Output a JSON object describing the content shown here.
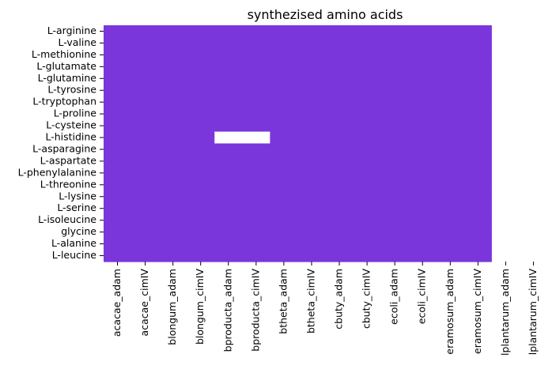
{
  "chart_data": {
    "type": "heatmap",
    "title": "synthezised amino acids",
    "xlabel": "",
    "ylabel": "",
    "grid": false,
    "legend": "none",
    "filled_color": "#7a36db",
    "empty_color": "#ffffff",
    "columns": [
      "acacae_adam",
      "acacae_cimIV",
      "blongum_adam",
      "blongum_cimIV",
      "bproducta_adam",
      "bproducta_cimIV",
      "btheta_adam",
      "btheta_cimIV",
      "cbuty_adam",
      "cbuty_cimIV",
      "ecoli_adam",
      "ecoli_cimIV",
      "eramosum_adam",
      "eramosum_cimIV",
      "lplantarum_adam",
      "lplantarum_cimIV"
    ],
    "rows": [
      "L-arginine",
      "L-valine",
      "L-methionine",
      "L-glutamate",
      "L-glutamine",
      "L-tyrosine",
      "L-tryptophan",
      "L-proline",
      "L-cysteine",
      "L-histidine",
      "L-asparagine",
      "L-aspartate",
      "L-phenylalanine",
      "L-threonine",
      "L-lysine",
      "L-serine",
      "L-isoleucine",
      "glycine",
      "L-alanine",
      "L-leucine"
    ],
    "values": [
      [
        1,
        1,
        1,
        1,
        1,
        1,
        1,
        1,
        1,
        1,
        1,
        1,
        1,
        1,
        0,
        0
      ],
      [
        1,
        1,
        1,
        1,
        1,
        1,
        1,
        1,
        1,
        1,
        1,
        1,
        1,
        1,
        0,
        0
      ],
      [
        1,
        1,
        1,
        1,
        1,
        1,
        1,
        1,
        1,
        1,
        1,
        1,
        1,
        1,
        0,
        0
      ],
      [
        1,
        1,
        1,
        1,
        1,
        1,
        1,
        1,
        1,
        1,
        1,
        1,
        1,
        1,
        0,
        0
      ],
      [
        1,
        1,
        1,
        1,
        1,
        1,
        1,
        1,
        1,
        1,
        1,
        1,
        1,
        1,
        0,
        0
      ],
      [
        1,
        1,
        1,
        1,
        1,
        1,
        1,
        1,
        1,
        1,
        1,
        1,
        1,
        1,
        0,
        0
      ],
      [
        1,
        1,
        1,
        1,
        1,
        1,
        1,
        1,
        1,
        1,
        1,
        1,
        1,
        1,
        0,
        0
      ],
      [
        1,
        1,
        1,
        1,
        1,
        1,
        1,
        1,
        1,
        1,
        1,
        1,
        1,
        1,
        0,
        0
      ],
      [
        1,
        1,
        1,
        1,
        1,
        1,
        1,
        1,
        1,
        1,
        1,
        1,
        1,
        1,
        0,
        0
      ],
      [
        1,
        1,
        1,
        1,
        0,
        0,
        1,
        1,
        1,
        1,
        1,
        1,
        1,
        1,
        0,
        0
      ],
      [
        1,
        1,
        1,
        1,
        1,
        1,
        1,
        1,
        1,
        1,
        1,
        1,
        1,
        1,
        0,
        0
      ],
      [
        1,
        1,
        1,
        1,
        1,
        1,
        1,
        1,
        1,
        1,
        1,
        1,
        1,
        1,
        0,
        0
      ],
      [
        1,
        1,
        1,
        1,
        1,
        1,
        1,
        1,
        1,
        1,
        1,
        1,
        1,
        1,
        0,
        0
      ],
      [
        1,
        1,
        1,
        1,
        1,
        1,
        1,
        1,
        1,
        1,
        1,
        1,
        1,
        1,
        0,
        0
      ],
      [
        1,
        1,
        1,
        1,
        1,
        1,
        1,
        1,
        1,
        1,
        1,
        1,
        1,
        1,
        0,
        0
      ],
      [
        1,
        1,
        1,
        1,
        1,
        1,
        1,
        1,
        1,
        1,
        1,
        1,
        1,
        1,
        0,
        0
      ],
      [
        1,
        1,
        1,
        1,
        1,
        1,
        1,
        1,
        1,
        1,
        1,
        1,
        1,
        1,
        0,
        0
      ],
      [
        1,
        1,
        1,
        1,
        1,
        1,
        1,
        1,
        1,
        1,
        1,
        1,
        1,
        1,
        0,
        0
      ],
      [
        1,
        1,
        1,
        1,
        1,
        1,
        1,
        1,
        1,
        1,
        1,
        1,
        1,
        1,
        0,
        0
      ],
      [
        1,
        1,
        1,
        1,
        1,
        1,
        1,
        1,
        1,
        1,
        1,
        1,
        1,
        1,
        0,
        0
      ]
    ]
  }
}
